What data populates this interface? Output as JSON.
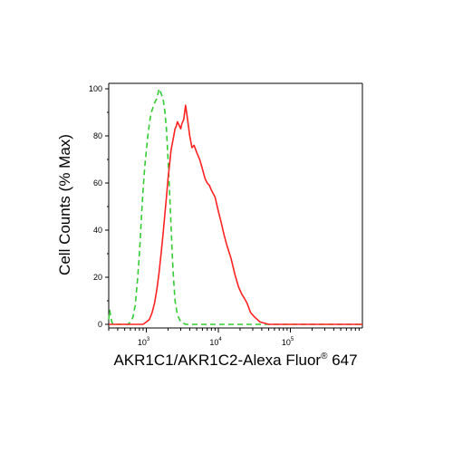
{
  "chart_data": {
    "type": "line",
    "title": "",
    "xlabel": "AKR1C1/AKR1C2-Alexa Fluor",
    "xlabel_sup": "®",
    "xlabel_suffix": " 647",
    "ylabel": "Cell Counts (% Max)",
    "x_scale": "log",
    "xlim": [
      300,
      1000000
    ],
    "ylim": [
      0,
      100
    ],
    "y_ticks": [
      {
        "value": 0,
        "label": "0"
      },
      {
        "value": 20,
        "label": "20"
      },
      {
        "value": 40,
        "label": "40"
      },
      {
        "value": 60,
        "label": "60"
      },
      {
        "value": 80,
        "label": "80"
      },
      {
        "value": 100,
        "label": "100"
      }
    ],
    "x_ticks": [
      {
        "value": 1000,
        "base": "10",
        "exp": "3"
      },
      {
        "value": 10000,
        "base": "10",
        "exp": "4"
      },
      {
        "value": 100000,
        "base": "10",
        "exp": "5"
      }
    ],
    "grid": false,
    "legend": "none",
    "series": [
      {
        "color": "#33cc33",
        "style": "dashed",
        "x": [
          300,
          310,
          330,
          350,
          400,
          450,
          500,
          550,
          600,
          650,
          700,
          750,
          800,
          850,
          900,
          950,
          1000,
          1050,
          1100,
          1150,
          1200,
          1300,
          1400,
          1500,
          1600,
          1700,
          1800,
          1900,
          2000,
          2100,
          2200,
          2300,
          2400,
          2500,
          2700,
          3000,
          3500,
          4000,
          6000,
          10000,
          30000,
          100000,
          1000000
        ],
        "y": [
          2,
          6,
          1,
          0,
          0,
          0,
          0,
          0,
          1,
          3,
          8,
          18,
          30,
          44,
          57,
          67,
          74,
          80,
          85,
          89,
          91,
          94,
          96,
          100,
          98,
          96,
          91,
          83,
          70,
          56,
          42,
          28,
          18,
          10,
          4,
          1,
          0,
          0,
          0,
          0,
          0,
          0,
          0
        ]
      },
      {
        "color": "#ff2222",
        "style": "solid",
        "x": [
          300,
          500,
          700,
          800,
          900,
          1000,
          1100,
          1200,
          1300,
          1400,
          1500,
          1600,
          1700,
          1800,
          1900,
          2000,
          2100,
          2200,
          2300,
          2400,
          2500,
          2600,
          2700,
          2800,
          3000,
          3100,
          3300,
          3500,
          3700,
          4000,
          4300,
          4600,
          5000,
          5500,
          6000,
          6500,
          7000,
          7500,
          8000,
          9000,
          10000,
          11000,
          12000,
          13000,
          15000,
          17000,
          19000,
          21000,
          23000,
          25000,
          28000,
          32000,
          38000,
          50000,
          100000,
          1000000
        ],
        "y": [
          0,
          0,
          0,
          0,
          0,
          1,
          2,
          5,
          9,
          15,
          22,
          30,
          38,
          46,
          54,
          62,
          68,
          74,
          77,
          80,
          83,
          84,
          86,
          85,
          83,
          85,
          87,
          93,
          88,
          80,
          75,
          76,
          73,
          70,
          66,
          62,
          60,
          59,
          57,
          54,
          48,
          43,
          38,
          34,
          28,
          21,
          16,
          13,
          11,
          9,
          5,
          3,
          1,
          0,
          0,
          0
        ]
      }
    ]
  }
}
